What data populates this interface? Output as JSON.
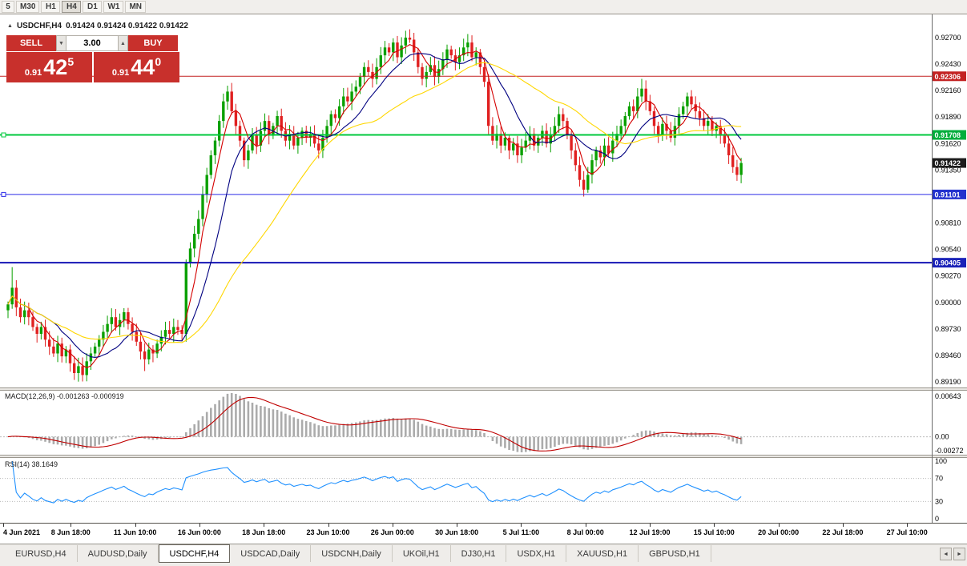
{
  "icons": {
    "collapse": "▲",
    "stepper_up": "▲",
    "stepper_down": "▼",
    "tab_scroll_left": "◄",
    "tab_scroll_right": "►"
  },
  "toolbar": {
    "timeframes": [
      "5",
      "M30",
      "H1",
      "H4",
      "D1",
      "W1",
      "MN"
    ],
    "active": "H4"
  },
  "chart_header": {
    "symbol": "USDCHF,H4",
    "ohlc": "0.91424 0.91424 0.91422 0.91422"
  },
  "one_click": {
    "sell_label": "SELL",
    "buy_label": "BUY",
    "lot": "3.00",
    "sell_price_prefix": "0.91",
    "sell_price_main": "42",
    "sell_price_sup": "5",
    "buy_price_prefix": "0.91",
    "buy_price_main": "44",
    "buy_price_sup": "0",
    "red": "#C8302C"
  },
  "price_axis": {
    "labels": [
      "0.92700",
      "0.92430",
      "0.92160",
      "0.91890",
      "0.91620",
      "0.91350",
      "0.91080",
      "0.90810",
      "0.90540",
      "0.90270",
      "0.90000",
      "0.89730",
      "0.89460",
      "0.89190"
    ],
    "badges": [
      {
        "value": "0.92306",
        "price": 0.92306,
        "color": "#C32222"
      },
      {
        "value": "0.91708",
        "price": 0.91708,
        "color": "#00AE3C"
      },
      {
        "value": "0.91422",
        "price": 0.91422,
        "color": "#1C1C1C"
      },
      {
        "value": "0.91101",
        "price": 0.91101,
        "color": "#2333CE"
      },
      {
        "value": "0.90405",
        "price": 0.90405,
        "color": "#1A22B8"
      }
    ]
  },
  "hlines": [
    {
      "price": 0.92306,
      "color": "#C32222",
      "width": 1,
      "handles": false
    },
    {
      "price": 0.91708,
      "color": "#00C83C",
      "width": 2,
      "handles": true
    },
    {
      "price": 0.91101,
      "color": "#2B2BE8",
      "width": 1,
      "handles": true
    },
    {
      "price": 0.90405,
      "color": "#1414B4",
      "width": 2,
      "handles": false
    }
  ],
  "macd": {
    "label": "MACD(12,26,9) -0.001263 -0.000919",
    "scale_top": "0.00643",
    "scale_zero": "0.00",
    "scale_bottom": "-0.00272"
  },
  "rsi": {
    "label": "RSI(14) 38.1649",
    "scale": [
      100,
      70,
      30,
      0
    ],
    "levels": [
      70,
      30
    ]
  },
  "time_axis": [
    "4 Jun 2021",
    "8 Jun 18:00",
    "11 Jun 10:00",
    "16 Jun 00:00",
    "18 Jun 18:00",
    "23 Jun 10:00",
    "26 Jun 00:00",
    "30 Jun 18:00",
    "5 Jul 11:00",
    "8 Jul 00:00",
    "12 Jul 19:00",
    "15 Jul 10:00",
    "20 Jul 00:00",
    "22 Jul 18:00",
    "27 Jul 10:00"
  ],
  "tabs": [
    "EURUSD,H4",
    "AUDUSD,Daily",
    "USDCHF,H4",
    "USDCAD,Daily",
    "USDCNH,Daily",
    "UKOil,H1",
    "DJ30,H1",
    "USDX,H1",
    "XAUUSD,H1",
    "GBPUSD,H1"
  ],
  "active_tab": "USDCHF,H4",
  "chart_data": {
    "type": "candlestick",
    "symbol": "USDCHF",
    "timeframe": "H4",
    "title": "USDCHF,H4",
    "y_range": [
      0.8918,
      0.9288
    ],
    "first_open": 0.8992,
    "closes": [
      0.8998,
      0.9015,
      0.8995,
      0.8985,
      0.8992,
      0.8985,
      0.8975,
      0.8968,
      0.8975,
      0.8962,
      0.8955,
      0.8948,
      0.8958,
      0.8945,
      0.8952,
      0.8938,
      0.8928,
      0.8935,
      0.8926,
      0.894,
      0.8948,
      0.8955,
      0.8962,
      0.897,
      0.8978,
      0.8985,
      0.8975,
      0.8982,
      0.899,
      0.8978,
      0.897,
      0.896,
      0.895,
      0.8942,
      0.8952,
      0.8948,
      0.8958,
      0.8965,
      0.8972,
      0.8968,
      0.8975,
      0.8972,
      0.8968,
      0.904,
      0.9055,
      0.907,
      0.9085,
      0.911,
      0.913,
      0.915,
      0.9165,
      0.9185,
      0.9205,
      0.9215,
      0.9195,
      0.918,
      0.9165,
      0.9145,
      0.9155,
      0.917,
      0.916,
      0.9175,
      0.9185,
      0.917,
      0.918,
      0.919,
      0.9175,
      0.9165,
      0.9172,
      0.916,
      0.9168,
      0.9175,
      0.9168,
      0.9172,
      0.9162,
      0.9155,
      0.9168,
      0.918,
      0.9192,
      0.9188,
      0.92,
      0.921,
      0.9205,
      0.9215,
      0.922,
      0.923,
      0.924,
      0.9235,
      0.9228,
      0.924,
      0.9252,
      0.926,
      0.9255,
      0.9265,
      0.925,
      0.9262,
      0.927,
      0.9268,
      0.9255,
      0.924,
      0.9228,
      0.9235,
      0.9242,
      0.923,
      0.9238,
      0.9248,
      0.9258,
      0.9252,
      0.9245,
      0.9252,
      0.926,
      0.9265,
      0.925,
      0.9255,
      0.924,
      0.9225,
      0.918,
      0.9165,
      0.9172,
      0.916,
      0.9168,
      0.9155,
      0.9162,
      0.915,
      0.9158,
      0.9165,
      0.9172,
      0.916,
      0.9168,
      0.9175,
      0.9162,
      0.917,
      0.918,
      0.9192,
      0.9185,
      0.917,
      0.9155,
      0.914,
      0.9125,
      0.9115,
      0.913,
      0.9145,
      0.9155,
      0.9148,
      0.916,
      0.9152,
      0.9165,
      0.9172,
      0.918,
      0.919,
      0.92,
      0.9195,
      0.921,
      0.9218,
      0.9205,
      0.9195,
      0.918,
      0.917,
      0.9182,
      0.9175,
      0.9168,
      0.918,
      0.9192,
      0.92,
      0.921,
      0.9202,
      0.9195,
      0.9188,
      0.918,
      0.9185,
      0.9175,
      0.918,
      0.917,
      0.9162,
      0.915,
      0.9138,
      0.913,
      0.91422
    ],
    "wick_overrides": {
      "1": {
        "h": 0.9036
      },
      "16": {
        "l": 0.8921
      },
      "33": {
        "l": 0.893
      },
      "43": {
        "l": 0.896
      },
      "53": {
        "h": 0.9221
      },
      "96": {
        "h": 0.9277
      },
      "139": {
        "l": 0.9108
      },
      "153": {
        "h": 0.9228
      },
      "176": {
        "l": 0.9124
      }
    },
    "ma_periods": [
      5,
      12,
      34
    ],
    "colors": {
      "up": "#0AA000",
      "down": "#E02020",
      "ma_fast": "#D40000",
      "ma_mid": "#000080",
      "ma_slow": "#FFD700",
      "macd_bars": "#ABABAB",
      "macd_signal": "#C00000",
      "rsi": "#1E90FF"
    }
  }
}
